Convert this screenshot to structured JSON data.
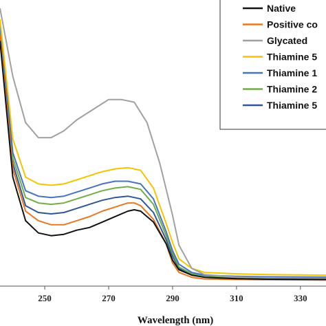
{
  "chart_data": {
    "type": "line",
    "title": "",
    "xlabel": "Wavelength (nm)",
    "ylabel": "",
    "xlim": [
      236,
      338
    ],
    "ylim": [
      0,
      1.0
    ],
    "xticks": [
      250,
      270,
      290,
      310,
      330
    ],
    "grid": false,
    "legend_position": "top-right",
    "series": [
      {
        "name": "Native",
        "color": "#111111",
        "x": [
          236,
          240,
          244,
          248,
          252,
          256,
          260,
          264,
          268,
          272,
          276,
          278,
          280,
          284,
          288,
          290,
          292,
          296,
          300,
          310,
          320,
          338
        ],
        "y": [
          0.88,
          0.38,
          0.22,
          0.175,
          0.165,
          0.17,
          0.185,
          0.195,
          0.215,
          0.235,
          0.255,
          0.26,
          0.255,
          0.215,
          0.135,
          0.075,
          0.04,
          0.02,
          0.012,
          0.007,
          0.005,
          0.004
        ]
      },
      {
        "name": "Positive co",
        "color": "#E87722",
        "x": [
          236,
          240,
          244,
          248,
          252,
          256,
          260,
          264,
          268,
          272,
          276,
          278,
          280,
          284,
          288,
          290,
          292,
          296,
          300,
          310,
          320,
          338
        ],
        "y": [
          0.9,
          0.41,
          0.255,
          0.22,
          0.205,
          0.205,
          0.22,
          0.235,
          0.255,
          0.27,
          0.285,
          0.285,
          0.275,
          0.225,
          0.135,
          0.065,
          0.03,
          0.012,
          0.006,
          0.004,
          0.003,
          0.002
        ]
      },
      {
        "name": "Glycated",
        "color": "#A0A0A0",
        "x": [
          236,
          240,
          244,
          248,
          252,
          256,
          260,
          264,
          268,
          270,
          274,
          278,
          282,
          286,
          290,
          292,
          296,
          300,
          310,
          320,
          338
        ],
        "y": [
          1.0,
          0.75,
          0.58,
          0.525,
          0.525,
          0.55,
          0.59,
          0.62,
          0.65,
          0.665,
          0.665,
          0.655,
          0.58,
          0.43,
          0.24,
          0.13,
          0.045,
          0.022,
          0.013,
          0.01,
          0.008
        ]
      },
      {
        "name": "Thiamine 5",
        "color": "#F5C400",
        "x": [
          236,
          240,
          244,
          248,
          252,
          256,
          260,
          264,
          268,
          272,
          276,
          280,
          284,
          288,
          290,
          292,
          296,
          300,
          310,
          320,
          338
        ],
        "y": [
          0.96,
          0.52,
          0.38,
          0.355,
          0.35,
          0.355,
          0.37,
          0.385,
          0.4,
          0.41,
          0.415,
          0.405,
          0.34,
          0.21,
          0.14,
          0.08,
          0.045,
          0.03,
          0.025,
          0.022,
          0.02
        ]
      },
      {
        "name": "Thiamine 1",
        "color": "#4472C4",
        "x": [
          236,
          240,
          244,
          248,
          252,
          256,
          260,
          264,
          268,
          272,
          276,
          280,
          284,
          288,
          290,
          292,
          296,
          300,
          310,
          320,
          338
        ],
        "y": [
          0.94,
          0.47,
          0.33,
          0.31,
          0.305,
          0.31,
          0.325,
          0.34,
          0.355,
          0.365,
          0.365,
          0.355,
          0.3,
          0.18,
          0.11,
          0.06,
          0.03,
          0.02,
          0.016,
          0.014,
          0.013
        ]
      },
      {
        "name": "Thiamine 2",
        "color": "#70AD47",
        "x": [
          236,
          240,
          244,
          248,
          252,
          256,
          260,
          264,
          268,
          272,
          276,
          280,
          284,
          288,
          290,
          292,
          296,
          300,
          310,
          320,
          338
        ],
        "y": [
          0.93,
          0.45,
          0.305,
          0.285,
          0.28,
          0.285,
          0.3,
          0.315,
          0.33,
          0.34,
          0.345,
          0.335,
          0.28,
          0.165,
          0.1,
          0.05,
          0.025,
          0.015,
          0.012,
          0.01,
          0.009
        ]
      },
      {
        "name": "Thiamine 5",
        "color": "#2F5597",
        "x": [
          236,
          240,
          244,
          248,
          252,
          256,
          260,
          264,
          268,
          272,
          276,
          280,
          284,
          288,
          290,
          292,
          296,
          300,
          310,
          320,
          338
        ],
        "y": [
          0.92,
          0.43,
          0.275,
          0.25,
          0.245,
          0.25,
          0.265,
          0.28,
          0.295,
          0.305,
          0.31,
          0.3,
          0.25,
          0.15,
          0.09,
          0.045,
          0.022,
          0.013,
          0.01,
          0.008,
          0.007
        ]
      }
    ]
  }
}
